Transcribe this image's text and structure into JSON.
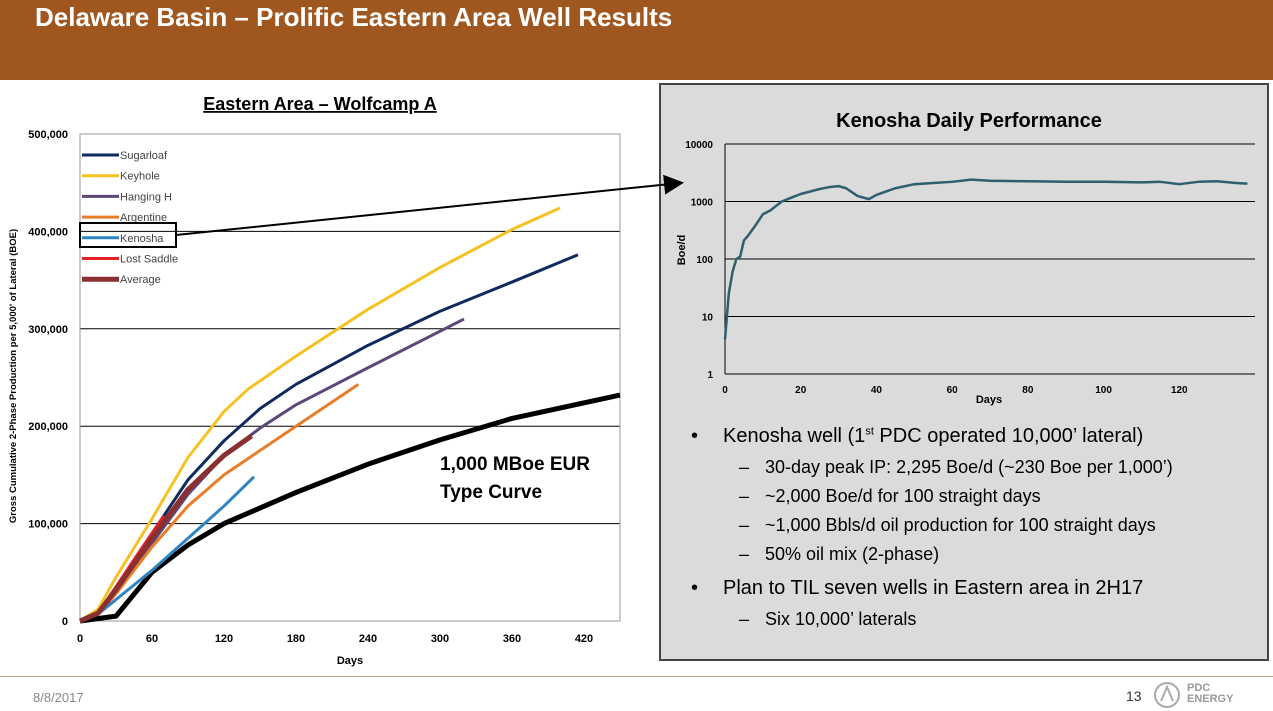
{
  "header": {
    "title": "Delaware Basin – Prolific Eastern Area Well Results"
  },
  "chart_data": [
    {
      "type": "line",
      "title": "Eastern Area – Wolfcamp A",
      "xlabel": "Days",
      "ylabel": "Gross Cumulative 2-Phase Production per 5,000' of Lateral (BOE)",
      "xlim": [
        0,
        450
      ],
      "ylim": [
        0,
        500000
      ],
      "x_ticks": [
        0,
        60,
        120,
        180,
        240,
        300,
        360,
        420
      ],
      "y_ticks": [
        0,
        100000,
        200000,
        300000,
        400000,
        500000
      ],
      "y_tick_labels": [
        "0",
        "100,000",
        "200,000",
        "300,000",
        "400,000",
        "500,000"
      ],
      "grid": "horizontal",
      "legend_position": "top-left",
      "series": [
        {
          "name": "Sugarloaf",
          "color": "#0f2a5e",
          "x": [
            0,
            15,
            30,
            60,
            90,
            120,
            150,
            180,
            240,
            300,
            360,
            415
          ],
          "y": [
            0,
            8000,
            35000,
            90000,
            145000,
            185000,
            218000,
            243000,
            283000,
            318000,
            348000,
            376000
          ]
        },
        {
          "name": "Keyhole",
          "color": "#f6c223",
          "x": [
            0,
            15,
            30,
            60,
            90,
            120,
            140,
            180,
            240,
            300,
            360,
            400
          ],
          "y": [
            0,
            12000,
            45000,
            105000,
            168000,
            215000,
            238000,
            272000,
            320000,
            363000,
            402000,
            424000
          ]
        },
        {
          "name": "Hanging H",
          "color": "#5c4779",
          "x": [
            0,
            15,
            30,
            60,
            90,
            120,
            150,
            180,
            240,
            320
          ],
          "y": [
            0,
            7000,
            30000,
            80000,
            130000,
            170000,
            198000,
            222000,
            260000,
            310000
          ]
        },
        {
          "name": "Argentine",
          "color": "#e67e2a",
          "x": [
            0,
            15,
            30,
            60,
            90,
            120,
            150,
            180,
            232
          ],
          "y": [
            0,
            7000,
            28000,
            76000,
            118000,
            150000,
            175000,
            200000,
            243000
          ]
        },
        {
          "name": "Kenosha",
          "color": "#2e86c1",
          "x": [
            0,
            15,
            30,
            60,
            90,
            120,
            145
          ],
          "y": [
            0,
            7000,
            22000,
            52000,
            85000,
            118000,
            148000
          ]
        },
        {
          "name": "Lost Saddle",
          "color": "#e52126",
          "x": [
            0,
            15,
            30,
            50,
            70
          ],
          "y": [
            0,
            8000,
            35000,
            72000,
            108000
          ]
        },
        {
          "name": "Average",
          "color": "#8b3030",
          "x": [
            0,
            15,
            30,
            60,
            90,
            120,
            143
          ],
          "y": [
            0,
            8000,
            32000,
            85000,
            135000,
            170000,
            190000
          ]
        }
      ],
      "type_curve": {
        "color": "#000000",
        "x": [
          0,
          30,
          60,
          90,
          120,
          180,
          240,
          300,
          360,
          450
        ],
        "y": [
          0,
          5000,
          50000,
          78000,
          100000,
          132000,
          161000,
          186000,
          208000,
          232000
        ]
      },
      "annotation": [
        "1,000 MBoe EUR",
        "Type Curve"
      ]
    },
    {
      "type": "line",
      "title": "Kenosha Daily Performance",
      "xlabel": "Days",
      "ylabel": "Boe/d",
      "scale_y": "log",
      "xlim": [
        0,
        140
      ],
      "ylim": [
        1,
        10000
      ],
      "x_ticks": [
        0,
        20,
        40,
        60,
        80,
        100,
        120
      ],
      "y_ticks": [
        1,
        10,
        100,
        1000,
        10000
      ],
      "y_tick_labels": [
        "1",
        "10",
        "100",
        "1000",
        "10000"
      ],
      "grid": "horizontal",
      "series": [
        {
          "name": "Kenosha",
          "color": "#2e5f6e",
          "x": [
            0,
            0.5,
            1,
            2,
            3,
            4,
            5,
            6,
            8,
            10,
            12,
            15,
            18,
            20,
            25,
            28,
            30,
            32,
            35,
            38,
            40,
            42,
            45,
            50,
            55,
            60,
            65,
            70,
            80,
            90,
            100,
            110,
            115,
            120,
            125,
            130,
            135,
            138
          ],
          "y": [
            4,
            10,
            25,
            60,
            100,
            110,
            210,
            250,
            380,
            600,
            700,
            1000,
            1200,
            1350,
            1650,
            1800,
            1850,
            1700,
            1250,
            1100,
            1300,
            1450,
            1700,
            2000,
            2100,
            2200,
            2400,
            2300,
            2250,
            2200,
            2200,
            2150,
            2200,
            2000,
            2200,
            2250,
            2100,
            2050
          ]
        }
      ]
    }
  ],
  "bullets": [
    {
      "text_pre": "Kenosha well (1",
      "sup": "st",
      "text_post": " PDC operated 10,000’ lateral)",
      "subs": [
        "30-day peak IP:  2,295 Boe/d (~230 Boe per 1,000’)",
        "~2,000 Boe/d for 100 straight days",
        "~1,000 Bbls/d oil production for 100 straight days",
        "50% oil mix (2-phase)"
      ]
    },
    {
      "text": "Plan to TIL seven wells in Eastern area in 2H17",
      "subs": [
        "Six 10,000’ laterals"
      ]
    }
  ],
  "bullet_symbol": "•",
  "dash_symbol": "–",
  "footer": {
    "date": "8/8/2017",
    "page": "13",
    "logo_line1": "PDC",
    "logo_line2": "ENERGY"
  }
}
